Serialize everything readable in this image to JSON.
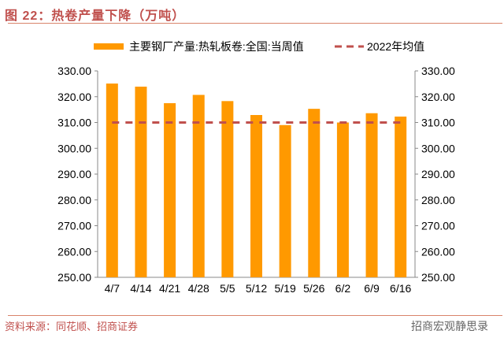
{
  "title": "图 22：热卷产量下降（万吨）",
  "source": "资料来源：同花顺、招商证券",
  "watermark": "招商宏观静思录",
  "chart_data": {
    "type": "bar",
    "categories": [
      "4/7",
      "4/14",
      "4/21",
      "4/28",
      "5/5",
      "5/12",
      "5/19",
      "5/26",
      "6/2",
      "6/9",
      "6/16"
    ],
    "series": [
      {
        "name": "主要钢厂产量:热轧板卷:全国:当周值",
        "type": "bar",
        "color": "#ff9900",
        "values": [
          325.1,
          323.9,
          317.5,
          320.7,
          318.3,
          312.9,
          309.0,
          315.3,
          310.0,
          313.6,
          312.3
        ]
      },
      {
        "name": "2022年均值",
        "type": "line",
        "style": "dashed",
        "color": "#c0504d",
        "values": [
          310.0,
          310.0,
          310.0,
          310.0,
          310.0,
          310.0,
          310.0,
          310.0,
          310.0,
          310.0,
          310.0
        ]
      }
    ],
    "ylim": [
      250,
      330
    ],
    "yticks": [
      "250.00",
      "260.00",
      "270.00",
      "280.00",
      "290.00",
      "300.00",
      "310.00",
      "320.00",
      "330.00"
    ],
    "secondary_yticks": [
      "250.00",
      "260.00",
      "270.00",
      "280.00",
      "290.00",
      "300.00",
      "310.00",
      "320.00",
      "330.00"
    ],
    "legend": "top",
    "grid": false
  }
}
